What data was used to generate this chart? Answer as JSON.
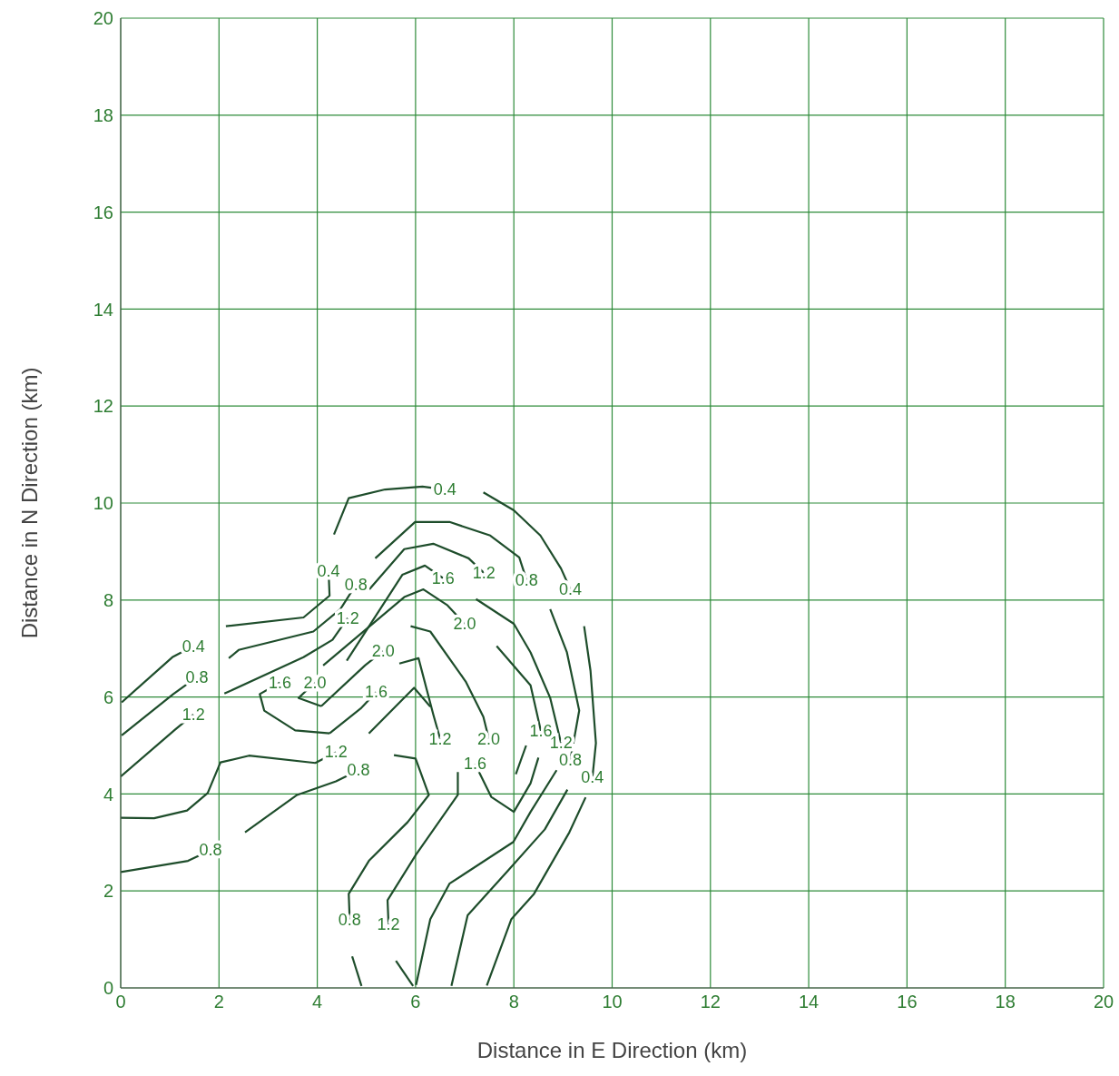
{
  "chart_data": {
    "type": "line",
    "xlabel": "Distance in E Direction (km)",
    "ylabel": "Distance in N Direction (km)",
    "xlim": [
      0,
      20
    ],
    "ylim": [
      0,
      20
    ],
    "xticks": [
      0,
      2,
      4,
      6,
      8,
      10,
      12,
      14,
      16,
      18,
      20
    ],
    "yticks": [
      0,
      2,
      4,
      6,
      8,
      10,
      12,
      14,
      16,
      18,
      20
    ],
    "grid": true,
    "marker": "none",
    "line_style": "solid",
    "series": [
      {
        "name": "0.4",
        "color": "#1e4d2b",
        "x": [
          0.02,
          1.05,
          1.48
        ],
        "values": [
          5.89,
          6.82,
          7.05
        ]
      },
      {
        "name": "0.4",
        "color": "#1e4d2b",
        "x": [
          2.14,
          3.72,
          4.25,
          4.23
        ],
        "values": [
          7.46,
          7.64,
          8.09,
          8.6
        ]
      },
      {
        "name": "0.4",
        "color": "#1e4d2b",
        "x": [
          4.34,
          4.64,
          5.38,
          6.14,
          6.6
        ],
        "values": [
          9.35,
          10.1,
          10.28,
          10.34,
          10.28
        ]
      },
      {
        "name": "0.4",
        "color": "#1e4d2b",
        "x": [
          7.38,
          8.0,
          8.54,
          8.96,
          9.15
        ],
        "values": [
          10.22,
          9.85,
          9.33,
          8.65,
          8.22
        ]
      },
      {
        "name": "0.4",
        "color": "#1e4d2b",
        "x": [
          9.43,
          9.56,
          9.67,
          9.6
        ],
        "values": [
          7.46,
          6.54,
          5.05,
          4.35
        ]
      },
      {
        "color": "#1e4d2b",
        "x": [
          9.46,
          9.13,
          8.41,
          7.95,
          7.45
        ],
        "values": [
          3.93,
          3.21,
          1.94,
          1.42,
          0.05
        ]
      },
      {
        "name": "0.8",
        "color": "#1e4d2b",
        "x": [
          0.02,
          1.07,
          1.55
        ],
        "values": [
          5.21,
          6.06,
          6.41
        ]
      },
      {
        "name": "0.8",
        "color": "#1e4d2b",
        "x": [
          2.2,
          2.4,
          3.92,
          4.47,
          4.79
        ],
        "values": [
          6.8,
          6.97,
          7.35,
          7.81,
          8.32
        ]
      },
      {
        "name": "0.8",
        "color": "#1e4d2b",
        "x": [
          5.18,
          5.99,
          6.69,
          7.52,
          8.11,
          8.26
        ],
        "values": [
          8.86,
          9.61,
          9.61,
          9.33,
          8.88,
          8.41
        ]
      },
      {
        "name": "0.8",
        "color": "#1e4d2b",
        "x": [
          8.74,
          9.08,
          9.33,
          9.15
        ],
        "values": [
          7.81,
          6.92,
          5.72,
          4.7
        ]
      },
      {
        "color": "#1e4d2b",
        "x": [
          9.09,
          8.63,
          7.89,
          7.06,
          6.73
        ],
        "values": [
          4.09,
          3.27,
          2.43,
          1.5,
          0.04
        ]
      },
      {
        "name": "0.8",
        "color": "#1e4d2b",
        "x": [
          0,
          1.37,
          1.83
        ],
        "values": [
          2.39,
          2.62,
          2.84
        ]
      },
      {
        "name": "0.8",
        "color": "#1e4d2b",
        "x": [
          2.53,
          3.59,
          4.38,
          4.84
        ],
        "values": [
          3.21,
          3.98,
          4.26,
          4.49
        ]
      },
      {
        "name": "0.8",
        "color": "#1e4d2b",
        "x": [
          5.56,
          6.0,
          6.27,
          5.84,
          5.05,
          4.64,
          4.66
        ],
        "values": [
          4.8,
          4.73,
          3.98,
          3.42,
          2.62,
          1.94,
          1.4
        ]
      },
      {
        "color": "#1e4d2b",
        "x": [
          4.71,
          4.9
        ],
        "values": [
          0.65,
          0.04
        ]
      },
      {
        "name": "1.2",
        "color": "#1e4d2b",
        "x": [
          0,
          1.11,
          1.48
        ],
        "values": [
          4.36,
          5.33,
          5.64
        ]
      },
      {
        "name": "1.2",
        "color": "#1e4d2b",
        "x": [
          2.11,
          3.72,
          4.31,
          4.62
        ],
        "values": [
          6.07,
          6.82,
          7.18,
          7.63
        ]
      },
      {
        "name": "1.2",
        "color": "#1e4d2b",
        "x": [
          5.06,
          5.77,
          6.36,
          7.08,
          7.39
        ],
        "values": [
          8.22,
          9.05,
          9.16,
          8.86,
          8.56
        ]
      },
      {
        "name": "1.2",
        "color": "#1e4d2b",
        "x": [
          7.23,
          8.0,
          8.34,
          8.74,
          8.96
        ],
        "values": [
          8.02,
          7.51,
          6.92,
          5.98,
          5.05
        ]
      },
      {
        "color": "#1e4d2b",
        "x": [
          8.87,
          8.34,
          7.99,
          6.69,
          6.3,
          6.01
        ],
        "values": [
          4.49,
          3.63,
          3.01,
          2.15,
          1.42,
          0.06
        ]
      },
      {
        "name": "1.2",
        "color": "#1e4d2b",
        "x": [
          0,
          0.68,
          1.35,
          1.77,
          2.03,
          2.61,
          3.96,
          4.38
        ],
        "values": [
          3.51,
          3.5,
          3.66,
          4.02,
          4.65,
          4.79,
          4.64,
          4.86
        ]
      },
      {
        "name": "1.2",
        "color": "#1e4d2b",
        "x": [
          5.67,
          6.06,
          6.36,
          6.5
        ],
        "values": [
          6.69,
          6.8,
          5.64,
          5.14
        ]
      },
      {
        "name": "1.2",
        "color": "#1e4d2b",
        "x": [
          6.86,
          6.86,
          6.01,
          5.43,
          5.45
        ],
        "values": [
          4.45,
          3.98,
          2.75,
          1.81,
          1.31
        ]
      },
      {
        "color": "#1e4d2b",
        "x": [
          5.6,
          5.95
        ],
        "values": [
          0.56,
          0.04
        ]
      },
      {
        "name": "1.6",
        "color": "#1e4d2b",
        "x": [
          4.6,
          5.73,
          6.19,
          6.56
        ],
        "values": [
          6.75,
          8.52,
          8.71,
          8.45
        ]
      },
      {
        "name": "1.6",
        "color": "#1e4d2b",
        "x": [
          7.65,
          8.34,
          8.55
        ],
        "values": [
          7.05,
          6.24,
          5.3
        ]
      },
      {
        "name": "1.6",
        "color": "#1e4d2b",
        "x": [
          8.5,
          8.34,
          8.0,
          7.54,
          7.21
        ],
        "values": [
          4.75,
          4.22,
          3.63,
          3.94,
          4.62
        ]
      },
      {
        "color": "#1e4d2b",
        "x": [
          8.04,
          8.25
        ],
        "values": [
          4.41,
          5.0
        ]
      },
      {
        "name": "1.6",
        "color": "#1e4d2b",
        "x": [
          4.25,
          3.55,
          2.92,
          2.83,
          3.24
        ],
        "values": [
          5.25,
          5.31,
          5.72,
          6.06,
          6.3
        ]
      },
      {
        "name": "1.6",
        "color": "#1e4d2b",
        "x": [
          4.25,
          4.88,
          5.2
        ],
        "values": [
          5.25,
          5.76,
          6.1
        ]
      },
      {
        "color": "#1e4d2b",
        "x": [
          5.05,
          5.97,
          6.3
        ],
        "values": [
          5.25,
          6.19,
          5.8
        ]
      },
      {
        "name": "2.0",
        "color": "#1e4d2b",
        "x": [
          4.12,
          5.77,
          6.16,
          6.65,
          7.0
        ],
        "values": [
          6.65,
          8.06,
          8.22,
          7.89,
          7.51
        ]
      },
      {
        "name": "2.0",
        "color": "#1e4d2b",
        "x": [
          4.08,
          3.62,
          3.95
        ],
        "values": [
          5.81,
          5.98,
          6.3
        ]
      },
      {
        "name": "2.0",
        "color": "#1e4d2b",
        "x": [
          4.08,
          4.97,
          5.34
        ],
        "values": [
          5.81,
          6.65,
          6.95
        ]
      },
      {
        "name": "2.0",
        "color": "#1e4d2b",
        "x": [
          5.9,
          6.3,
          7.02,
          7.38,
          7.49
        ],
        "values": [
          7.46,
          7.35,
          6.32,
          5.59,
          5.14
        ]
      }
    ]
  }
}
